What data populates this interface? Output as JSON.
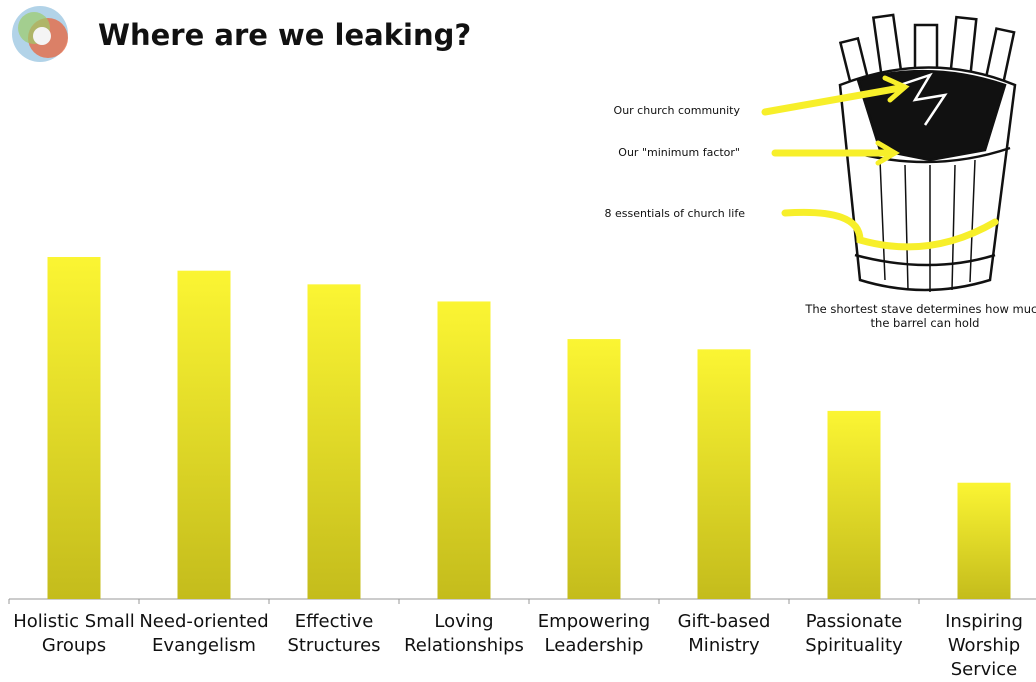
{
  "chart_data": {
    "type": "bar",
    "title": "Where are we leaking?",
    "categories": [
      "Holistic Small Groups",
      "Need-oriented Evangelism",
      "Effective Structures",
      "Loving Relationships",
      "Empowering Leadership",
      "Gift-based Ministry",
      "Passionate Spirituality",
      "Inspiring Worship Service"
    ],
    "values": [
      100,
      96,
      92,
      87,
      76,
      73,
      55,
      34
    ],
    "color": "#f4ec2c",
    "ylim": [
      0,
      100
    ],
    "annotations": [
      "Our church community",
      "Our \"minimum factor\"",
      "8 essentials of church life"
    ],
    "caption": "The shortest stave determines how much the barrel can hold"
  }
}
